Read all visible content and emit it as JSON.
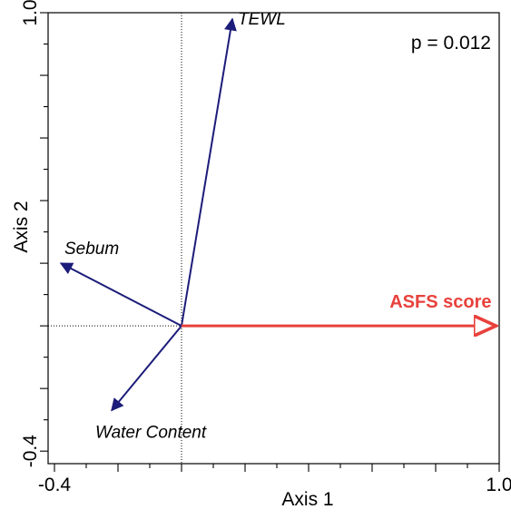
{
  "chart_data": {
    "type": "scatter",
    "subtype": "biplot-vectors",
    "xlabel": "Axis 1",
    "ylabel": "Axis 2",
    "xlim": [
      -0.42,
      1.0
    ],
    "ylim": [
      -0.44,
      1.0
    ],
    "x_tick_labels": [
      {
        "value": -0.4,
        "label": "-0.4"
      },
      {
        "value": 1.0,
        "label": "1.0"
      }
    ],
    "y_tick_labels": [
      {
        "value": -0.4,
        "label": "-0.4"
      },
      {
        "value": 1.0,
        "label": "1.0"
      }
    ],
    "annotation": "p = 0.012",
    "reference_lines": {
      "x": 0,
      "y": 0,
      "style": "dotted"
    },
    "grid": false,
    "vectors": [
      {
        "name": "TEWL",
        "x": 0.16,
        "y": 0.98,
        "color": "#1c1c7a",
        "style": "italic"
      },
      {
        "name": "Sebum",
        "x": -0.38,
        "y": 0.2,
        "color": "#1c1c7a",
        "style": "italic"
      },
      {
        "name": "Water Content",
        "x": -0.22,
        "y": -0.27,
        "color": "#1c1c7a",
        "style": "italic"
      },
      {
        "name": "ASFS score",
        "x": 0.99,
        "y": 0.0,
        "color": "#e8413c",
        "style": "bold"
      }
    ]
  }
}
